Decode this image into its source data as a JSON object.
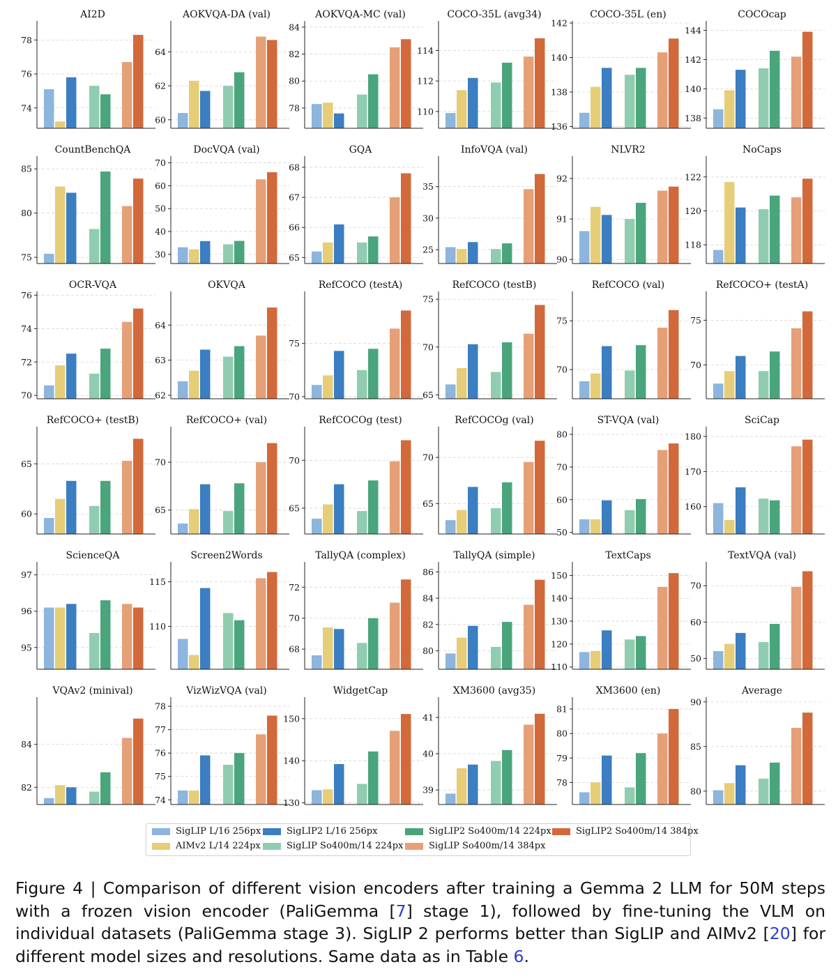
{
  "legend": [
    {
      "name": "SigLIP L/16 256px",
      "color": "#8db5dd"
    },
    {
      "name": "AIMv2 L/14 224px",
      "color": "#e6cd78"
    },
    {
      "name": "SigLIP2 L/16 256px",
      "color": "#3b7ec1"
    },
    {
      "name": "SigLIP So400m/14 224px",
      "color": "#90cdb0"
    },
    {
      "name": "SigLIP2 So400m/14 224px",
      "color": "#4aa57c"
    },
    {
      "name": "SigLIP So400m/14 384px",
      "color": "#e6a077"
    },
    {
      "name": "SigLIP2 So400m/14 384px",
      "color": "#d2693a"
    }
  ],
  "caption": {
    "prefix": "Figure 4 | Comparison of different vision encoders after training a Gemma 2 LLM for 50M steps with a frozen vision encoder (PaliGemma [",
    "ref1": "7",
    "mid1": "] stage 1), followed by fine-tuning the VLM on individual datasets (PaliGemma stage 3). SigLIP 2 performs better than SigLIP and AIMv2 [",
    "ref2": "20",
    "mid2": "] for different model sizes and resolutions. Same data as in Table ",
    "ref3": "6",
    "suffix": "."
  },
  "chart_data": [
    {
      "type": "bar",
      "title": "AI2D",
      "ylim": [
        72.8,
        79.0
      ],
      "ticks": [
        74,
        76,
        78
      ],
      "values": [
        75.1,
        73.2,
        75.8,
        75.3,
        74.8,
        76.7,
        78.3
      ]
    },
    {
      "type": "bar",
      "title": "AOKVQA-DA (val)",
      "ylim": [
        59.5,
        65.7
      ],
      "ticks": [
        60,
        62,
        64
      ],
      "values": [
        60.4,
        62.3,
        61.7,
        62.0,
        62.8,
        64.9,
        64.7
      ]
    },
    {
      "type": "bar",
      "title": "AOKVQA-MC (val)",
      "ylim": [
        76.5,
        84.3
      ],
      "ticks": [
        78,
        80,
        82,
        84
      ],
      "values": [
        78.3,
        78.4,
        77.6,
        79.0,
        80.5,
        82.5,
        83.1
      ]
    },
    {
      "type": "bar",
      "title": "COCO-35L (avg34)",
      "ylim": [
        108.9,
        115.8
      ],
      "ticks": [
        110,
        112,
        114
      ],
      "values": [
        109.9,
        111.4,
        112.2,
        111.9,
        113.2,
        113.6,
        114.8
      ]
    },
    {
      "type": "bar",
      "title": "COCO-35L (en)",
      "ylim": [
        135.9,
        142.0
      ],
      "ticks": [
        136,
        138,
        140,
        142
      ],
      "values": [
        136.8,
        138.3,
        139.4,
        139.0,
        139.4,
        140.3,
        141.1
      ]
    },
    {
      "type": "bar",
      "title": "COCOcap",
      "ylim": [
        137.3,
        144.5
      ],
      "ticks": [
        138,
        140,
        142,
        144
      ],
      "values": [
        138.6,
        139.9,
        141.3,
        141.4,
        142.6,
        142.2,
        143.9
      ]
    },
    {
      "type": "bar",
      "title": "CountBenchQA",
      "ylim": [
        74.3,
        86.2
      ],
      "ticks": [
        75,
        80,
        85
      ],
      "values": [
        75.4,
        83.0,
        82.3,
        78.2,
        84.7,
        80.8,
        83.9
      ]
    },
    {
      "type": "bar",
      "title": "DocVQA (val)",
      "ylim": [
        26.0,
        72.0
      ],
      "ticks": [
        30,
        40,
        50,
        60,
        70
      ],
      "values": [
        33.1,
        32.2,
        35.8,
        34.4,
        35.9,
        62.8,
        65.9
      ]
    },
    {
      "type": "bar",
      "title": "GQA",
      "ylim": [
        64.8,
        68.3
      ],
      "ticks": [
        65,
        66,
        67,
        68
      ],
      "values": [
        65.2,
        65.5,
        66.1,
        65.5,
        65.7,
        67.0,
        67.8
      ]
    },
    {
      "type": "bar",
      "title": "InfoVQA (val)",
      "ylim": [
        22.8,
        39.5
      ],
      "ticks": [
        25,
        30,
        35
      ],
      "values": [
        25.4,
        25.1,
        26.2,
        25.1,
        26.0,
        34.6,
        37.0
      ]
    },
    {
      "type": "bar",
      "title": "NLVR2",
      "ylim": [
        89.9,
        92.5
      ],
      "ticks": [
        90,
        91,
        92
      ],
      "values": [
        90.7,
        91.3,
        91.1,
        91.0,
        91.4,
        91.7,
        91.8
      ]
    },
    {
      "type": "bar",
      "title": "NoCaps",
      "ylim": [
        116.9,
        123.1
      ],
      "ticks": [
        118,
        120,
        122
      ],
      "values": [
        117.7,
        121.7,
        120.2,
        120.1,
        120.9,
        120.8,
        121.9
      ]
    },
    {
      "type": "bar",
      "title": "OCR-VQA",
      "ylim": [
        69.8,
        76.1
      ],
      "ticks": [
        70,
        72,
        74,
        76
      ],
      "values": [
        70.6,
        71.8,
        72.5,
        71.3,
        72.8,
        74.4,
        75.2
      ]
    },
    {
      "type": "bar",
      "title": "OKVQA",
      "ylim": [
        61.9,
        64.9
      ],
      "ticks": [
        62,
        63,
        64
      ],
      "values": [
        62.4,
        62.7,
        63.3,
        63.1,
        63.4,
        63.7,
        64.5
      ]
    },
    {
      "type": "bar",
      "title": "RefCOCO (testA)",
      "ylim": [
        69.8,
        79.7
      ],
      "ticks": [
        70,
        75
      ],
      "values": [
        71.1,
        72.0,
        74.3,
        72.5,
        74.5,
        76.4,
        78.1
      ]
    },
    {
      "type": "bar",
      "title": "RefCOCO (testB)",
      "ylim": [
        64.6,
        75.6
      ],
      "ticks": [
        65,
        70,
        75
      ],
      "values": [
        66.1,
        67.8,
        70.3,
        67.4,
        70.5,
        71.4,
        74.4
      ]
    },
    {
      "type": "bar",
      "title": "RefCOCO (val)",
      "ylim": [
        67.0,
        77.8
      ],
      "ticks": [
        70,
        75
      ],
      "values": [
        68.8,
        69.6,
        72.4,
        69.9,
        72.5,
        74.3,
        76.1
      ]
    },
    {
      "type": "bar",
      "title": "RefCOCO+ (testA)",
      "ylim": [
        66.2,
        78.0
      ],
      "ticks": [
        70,
        75
      ],
      "values": [
        67.9,
        69.3,
        71.0,
        69.3,
        71.5,
        74.1,
        76.0
      ]
    },
    {
      "type": "bar",
      "title": "RefCOCO+ (testB)",
      "ylim": [
        58.0,
        68.5
      ],
      "ticks": [
        60,
        65
      ],
      "values": [
        59.6,
        61.5,
        63.3,
        60.8,
        63.3,
        65.3,
        67.5
      ]
    },
    {
      "type": "bar",
      "title": "RefCOCO+ (val)",
      "ylim": [
        62.5,
        73.5
      ],
      "ticks": [
        65,
        70
      ],
      "values": [
        63.6,
        65.1,
        67.7,
        64.9,
        67.8,
        70.0,
        72.0
      ]
    },
    {
      "type": "bar",
      "title": "RefCOCOg (test)",
      "ylim": [
        62.3,
        73.3
      ],
      "ticks": [
        65,
        70
      ],
      "values": [
        63.9,
        65.4,
        67.5,
        64.7,
        67.9,
        69.9,
        72.1
      ]
    },
    {
      "type": "bar",
      "title": "RefCOCOg (val)",
      "ylim": [
        61.7,
        73.1
      ],
      "ticks": [
        65,
        70
      ],
      "values": [
        63.2,
        64.3,
        66.8,
        64.5,
        67.3,
        69.5,
        71.8
      ]
    },
    {
      "type": "bar",
      "title": "ST-VQA (val)",
      "ylim": [
        49.5,
        81.7
      ],
      "ticks": [
        50,
        60,
        70,
        80
      ],
      "values": [
        54.0,
        54.0,
        59.8,
        56.8,
        60.2,
        75.2,
        77.2
      ]
    },
    {
      "type": "bar",
      "title": "SciCap",
      "ylim": [
        152.2,
        182.2
      ],
      "ticks": [
        160,
        170,
        180
      ],
      "values": [
        161.0,
        156.2,
        165.5,
        162.3,
        161.8,
        177.2,
        179.1
      ]
    },
    {
      "type": "bar",
      "title": "ScienceQA",
      "ylim": [
        94.4,
        97.3
      ],
      "ticks": [
        95,
        96,
        97
      ],
      "values": [
        96.1,
        96.1,
        96.2,
        95.4,
        96.3,
        96.2,
        96.1
      ]
    },
    {
      "type": "bar",
      "title": "Screen2Words",
      "ylim": [
        105.2,
        117.0
      ],
      "ticks": [
        110,
        115
      ],
      "values": [
        108.6,
        106.8,
        114.3,
        111.5,
        110.7,
        115.4,
        116.1
      ]
    },
    {
      "type": "bar",
      "title": "TallyQA (complex)",
      "ylim": [
        66.7,
        73.5
      ],
      "ticks": [
        68,
        70,
        72
      ],
      "values": [
        67.6,
        69.4,
        69.3,
        68.4,
        70.0,
        71.0,
        72.5
      ]
    },
    {
      "type": "bar",
      "title": "TallyQA (simple)",
      "ylim": [
        78.6,
        86.6
      ],
      "ticks": [
        80,
        82,
        84,
        86
      ],
      "values": [
        79.8,
        81.0,
        81.9,
        80.3,
        82.2,
        83.5,
        85.4
      ]
    },
    {
      "type": "bar",
      "title": "TextCaps",
      "ylim": [
        109.0,
        155.0
      ],
      "ticks": [
        110,
        120,
        130,
        140,
        150
      ],
      "values": [
        116.5,
        117.0,
        126.0,
        122.0,
        123.5,
        145.0,
        151.0
      ]
    },
    {
      "type": "bar",
      "title": "TextVQA (val)",
      "ylim": [
        47.0,
        76.0
      ],
      "ticks": [
        50,
        60,
        70
      ],
      "values": [
        52.0,
        54.0,
        57.0,
        54.5,
        59.5,
        69.7,
        74.0
      ]
    },
    {
      "type": "bar",
      "title": "VQAv2 (minival)",
      "ylim": [
        81.2,
        86.1
      ],
      "ticks": [
        82,
        84
      ],
      "values": [
        81.5,
        82.1,
        82.0,
        81.8,
        82.7,
        84.3,
        85.2
      ]
    },
    {
      "type": "bar",
      "title": "VizWizVQA (val)",
      "ylim": [
        73.8,
        78.3
      ],
      "ticks": [
        74,
        75,
        76,
        77,
        78
      ],
      "values": [
        74.4,
        74.4,
        75.9,
        75.5,
        76.0,
        76.8,
        77.6
      ]
    },
    {
      "type": "bar",
      "title": "WidgetCap",
      "ylim": [
        129.6,
        154.6
      ],
      "ticks": [
        130,
        140,
        150
      ],
      "values": [
        133.0,
        133.2,
        139.2,
        134.5,
        142.2,
        147.1,
        151.1
      ]
    },
    {
      "type": "bar",
      "title": "XM3600 (avg35)",
      "ylim": [
        38.6,
        41.5
      ],
      "ticks": [
        39,
        40,
        41
      ],
      "values": [
        38.9,
        39.6,
        39.7,
        39.8,
        40.1,
        40.8,
        41.1
      ]
    },
    {
      "type": "bar",
      "title": "XM3600 (en)",
      "ylim": [
        77.1,
        81.4
      ],
      "ticks": [
        78,
        79,
        80,
        81
      ],
      "values": [
        77.6,
        78.0,
        79.1,
        77.8,
        79.2,
        80.0,
        81.0
      ]
    },
    {
      "type": "bar",
      "title": "Average",
      "ylim": [
        78.5,
        90.3
      ],
      "ticks": [
        80,
        85,
        90
      ],
      "values": [
        80.1,
        80.9,
        82.9,
        81.4,
        83.2,
        87.1,
        88.8
      ]
    }
  ]
}
